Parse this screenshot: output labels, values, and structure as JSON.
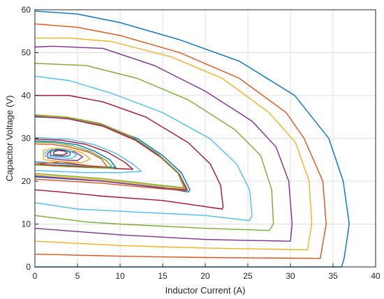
{
  "chart_data": {
    "type": "line",
    "xlabel": "Inductor Current (A)",
    "ylabel": "Capacitor Voltage (V)",
    "xlim": [
      0,
      40
    ],
    "ylim": [
      0,
      60
    ],
    "xticks": [
      0,
      5,
      10,
      15,
      20,
      25,
      30,
      35,
      40
    ],
    "yticks": [
      0,
      10,
      20,
      30,
      40,
      50,
      60
    ],
    "grid": true,
    "series": [
      {
        "color": "#0072BD",
        "points": [
          [
            0,
            0
          ],
          [
            36,
            0
          ],
          [
            36.3,
            2
          ],
          [
            36.9,
            10
          ],
          [
            36.2,
            20
          ],
          [
            34.5,
            30
          ],
          [
            30.5,
            40
          ],
          [
            24,
            48
          ],
          [
            17,
            53
          ],
          [
            10,
            57
          ],
          [
            5,
            59
          ],
          [
            0,
            59.7
          ]
        ]
      },
      {
        "color": "#D95319",
        "points": [
          [
            0,
            3
          ],
          [
            10,
            2.5
          ],
          [
            20,
            2.2
          ],
          [
            33.5,
            2
          ],
          [
            34.2,
            10
          ],
          [
            33.8,
            20
          ],
          [
            31.6,
            30
          ],
          [
            29.5,
            36
          ],
          [
            24,
            44
          ],
          [
            17,
            50
          ],
          [
            10,
            54
          ],
          [
            5,
            55.9
          ],
          [
            0,
            56.7
          ]
        ]
      },
      {
        "color": "#EDB120",
        "points": [
          [
            0,
            6
          ],
          [
            10,
            5
          ],
          [
            20,
            4.4
          ],
          [
            32,
            4
          ],
          [
            32.5,
            10
          ],
          [
            32.2,
            20
          ],
          [
            30.6,
            29
          ],
          [
            27.5,
            36
          ],
          [
            22,
            44
          ],
          [
            16,
            49
          ],
          [
            9,
            52.6
          ],
          [
            4,
            53.4
          ],
          [
            0,
            53.4
          ]
        ]
      },
      {
        "color": "#7E2F8E",
        "points": [
          [
            0,
            9
          ],
          [
            10,
            7.5
          ],
          [
            20,
            6.4
          ],
          [
            30,
            6
          ],
          [
            30.2,
            10
          ],
          [
            29.8,
            20
          ],
          [
            28.3,
            28
          ],
          [
            25.5,
            34
          ],
          [
            20,
            41
          ],
          [
            14,
            47
          ],
          [
            8,
            51
          ],
          [
            2,
            51.5
          ],
          [
            0,
            51.3
          ]
        ]
      },
      {
        "color": "#77AC30",
        "points": [
          [
            0,
            12
          ],
          [
            6,
            10.5
          ],
          [
            10,
            10
          ],
          [
            20,
            9
          ],
          [
            27.5,
            8.5
          ],
          [
            28,
            10
          ],
          [
            27.8,
            18
          ],
          [
            26.5,
            26
          ],
          [
            23.5,
            32
          ],
          [
            18,
            39
          ],
          [
            12,
            44
          ],
          [
            6,
            47
          ],
          [
            0,
            47.5
          ]
        ]
      },
      {
        "color": "#4DBEEE",
        "points": [
          [
            0,
            15
          ],
          [
            5,
            13.5
          ],
          [
            10,
            13
          ],
          [
            20,
            12
          ],
          [
            25.2,
            10.8
          ],
          [
            25.5,
            12
          ],
          [
            25.2,
            18
          ],
          [
            23.7,
            24
          ],
          [
            20.5,
            30
          ],
          [
            15,
            36
          ],
          [
            9,
            40.5
          ],
          [
            4,
            43.5
          ],
          [
            0,
            44.5
          ]
        ]
      },
      {
        "color": "#A2142F",
        "points": [
          [
            0,
            18
          ],
          [
            3,
            17.5
          ],
          [
            8,
            16.5
          ],
          [
            15,
            15.5
          ],
          [
            22,
            13.5
          ],
          [
            22.1,
            14
          ],
          [
            21.8,
            19
          ],
          [
            20.6,
            24
          ],
          [
            18,
            29
          ],
          [
            13,
            35
          ],
          [
            8,
            38.5
          ],
          [
            4,
            40
          ],
          [
            0,
            40
          ]
        ]
      },
      {
        "color": "#0072BD",
        "points": [
          [
            0,
            21
          ],
          [
            8,
            20
          ],
          [
            15,
            18.5
          ],
          [
            18,
            17.5
          ],
          [
            18.2,
            18
          ],
          [
            17.2,
            22
          ],
          [
            15,
            26
          ],
          [
            12,
            30
          ],
          [
            8,
            33
          ],
          [
            4,
            34.7
          ],
          [
            0,
            35
          ]
        ]
      },
      {
        "color": "#D95319",
        "points": [
          [
            0,
            20.5
          ],
          [
            8,
            19.5
          ],
          [
            15,
            18.2
          ],
          [
            17.8,
            17.8
          ],
          [
            17,
            21.5
          ],
          [
            14.8,
            25.5
          ],
          [
            11.8,
            29.5
          ],
          [
            8,
            32.8
          ],
          [
            4,
            34.5
          ],
          [
            0,
            35.2
          ]
        ]
      },
      {
        "color": "#EDB120",
        "points": [
          [
            0,
            21.5
          ],
          [
            8,
            20.3
          ],
          [
            15,
            18.8
          ],
          [
            17.6,
            18.2
          ],
          [
            16.8,
            22
          ],
          [
            14.6,
            26
          ],
          [
            11.6,
            30
          ],
          [
            7.8,
            33.3
          ],
          [
            3.8,
            34.8
          ],
          [
            0,
            35.4
          ]
        ]
      },
      {
        "color": "#7E2F8E",
        "points": [
          [
            0,
            21.2
          ],
          [
            8,
            20
          ],
          [
            15,
            18.4
          ],
          [
            17.9,
            18
          ],
          [
            16.9,
            21.8
          ],
          [
            14.7,
            25.8
          ],
          [
            11.7,
            29.8
          ],
          [
            7.9,
            33
          ],
          [
            3.9,
            34.6
          ],
          [
            0,
            35.1
          ]
        ]
      },
      {
        "color": "#77AC30",
        "points": [
          [
            0,
            21.8
          ],
          [
            8,
            20.6
          ],
          [
            15,
            19
          ],
          [
            17.5,
            18.5
          ],
          [
            16.7,
            22.3
          ],
          [
            14.5,
            26.3
          ],
          [
            11.5,
            30.3
          ],
          [
            7.7,
            33.5
          ],
          [
            3.7,
            35
          ],
          [
            0,
            35.5
          ]
        ]
      },
      {
        "color": "#4DBEEE",
        "points": [
          [
            0,
            22.5
          ],
          [
            6,
            22
          ],
          [
            10,
            22
          ],
          [
            12.5,
            22.3
          ],
          [
            11.5,
            24
          ],
          [
            9.5,
            26.5
          ],
          [
            7,
            28.5
          ],
          [
            4,
            29.8
          ],
          [
            0,
            30.2
          ]
        ]
      },
      {
        "color": "#A2142F",
        "points": [
          [
            0,
            24
          ],
          [
            5,
            23.5
          ],
          [
            9,
            23
          ],
          [
            11.5,
            22.8
          ],
          [
            10.5,
            24.5
          ],
          [
            8.5,
            26.8
          ],
          [
            6,
            28.6
          ],
          [
            3,
            29.6
          ],
          [
            0,
            29.8
          ]
        ]
      },
      {
        "color": "#0072BD",
        "points": [
          [
            0,
            24.5
          ],
          [
            4,
            24
          ],
          [
            7,
            23.5
          ],
          [
            9.5,
            23.2
          ],
          [
            8.8,
            25
          ],
          [
            7,
            27
          ],
          [
            5,
            28.5
          ],
          [
            2.5,
            29.2
          ],
          [
            0,
            29.4
          ]
        ]
      },
      {
        "color": "#D95319",
        "points": [
          [
            0,
            24
          ],
          [
            3,
            24.5
          ],
          [
            6.5,
            23.6
          ],
          [
            8.5,
            23.3
          ],
          [
            7.8,
            25.2
          ],
          [
            6.3,
            26.8
          ],
          [
            4,
            28
          ],
          [
            2,
            28.6
          ],
          [
            0,
            28.7
          ]
        ]
      },
      {
        "color": "#77AC30",
        "points": [
          [
            0,
            23.8
          ],
          [
            3.5,
            23.4
          ],
          [
            7.5,
            23.1
          ],
          [
            9.2,
            23
          ],
          [
            8.4,
            24.8
          ],
          [
            6.6,
            26.9
          ],
          [
            4.4,
            28.3
          ],
          [
            2.2,
            29
          ],
          [
            0,
            29.1
          ]
        ]
      },
      {
        "color": "#EDB120",
        "points": [
          [
            1,
            25
          ],
          [
            3,
            24.6
          ],
          [
            5.5,
            24.3
          ],
          [
            6.5,
            25.2
          ],
          [
            5.6,
            26.6
          ],
          [
            4,
            27.5
          ],
          [
            2.3,
            27.7
          ],
          [
            1,
            27.2
          ],
          [
            1,
            25
          ]
        ]
      },
      {
        "color": "#7E2F8E",
        "points": [
          [
            1.5,
            25.4
          ],
          [
            3.2,
            25
          ],
          [
            5,
            24.8
          ],
          [
            5.6,
            25.7
          ],
          [
            4.7,
            26.8
          ],
          [
            3.3,
            27.3
          ],
          [
            2,
            27.2
          ],
          [
            1.5,
            26.5
          ],
          [
            1.5,
            25.4
          ]
        ]
      },
      {
        "color": "#4DBEEE",
        "points": [
          [
            1.2,
            25.8
          ],
          [
            2.8,
            25.5
          ],
          [
            4.3,
            25.3
          ],
          [
            4.9,
            26.1
          ],
          [
            4.2,
            27
          ],
          [
            3,
            27.5
          ],
          [
            1.9,
            27.3
          ],
          [
            1.2,
            26.7
          ],
          [
            1.2,
            25.8
          ]
        ]
      },
      {
        "color": "#0072BD",
        "points": [
          [
            1.8,
            26
          ],
          [
            3.1,
            25.8
          ],
          [
            4,
            25.9
          ],
          [
            4.2,
            26.6
          ],
          [
            3.6,
            27.2
          ],
          [
            2.6,
            27.4
          ],
          [
            1.9,
            27.1
          ],
          [
            1.8,
            26
          ]
        ]
      },
      {
        "color": "#A2142F",
        "points": [
          [
            2.2,
            26.2
          ],
          [
            3.3,
            26.1
          ],
          [
            3.8,
            26.5
          ],
          [
            3.5,
            27
          ],
          [
            2.7,
            27.2
          ],
          [
            2.2,
            26.8
          ],
          [
            2.2,
            26.2
          ]
        ]
      }
    ]
  }
}
